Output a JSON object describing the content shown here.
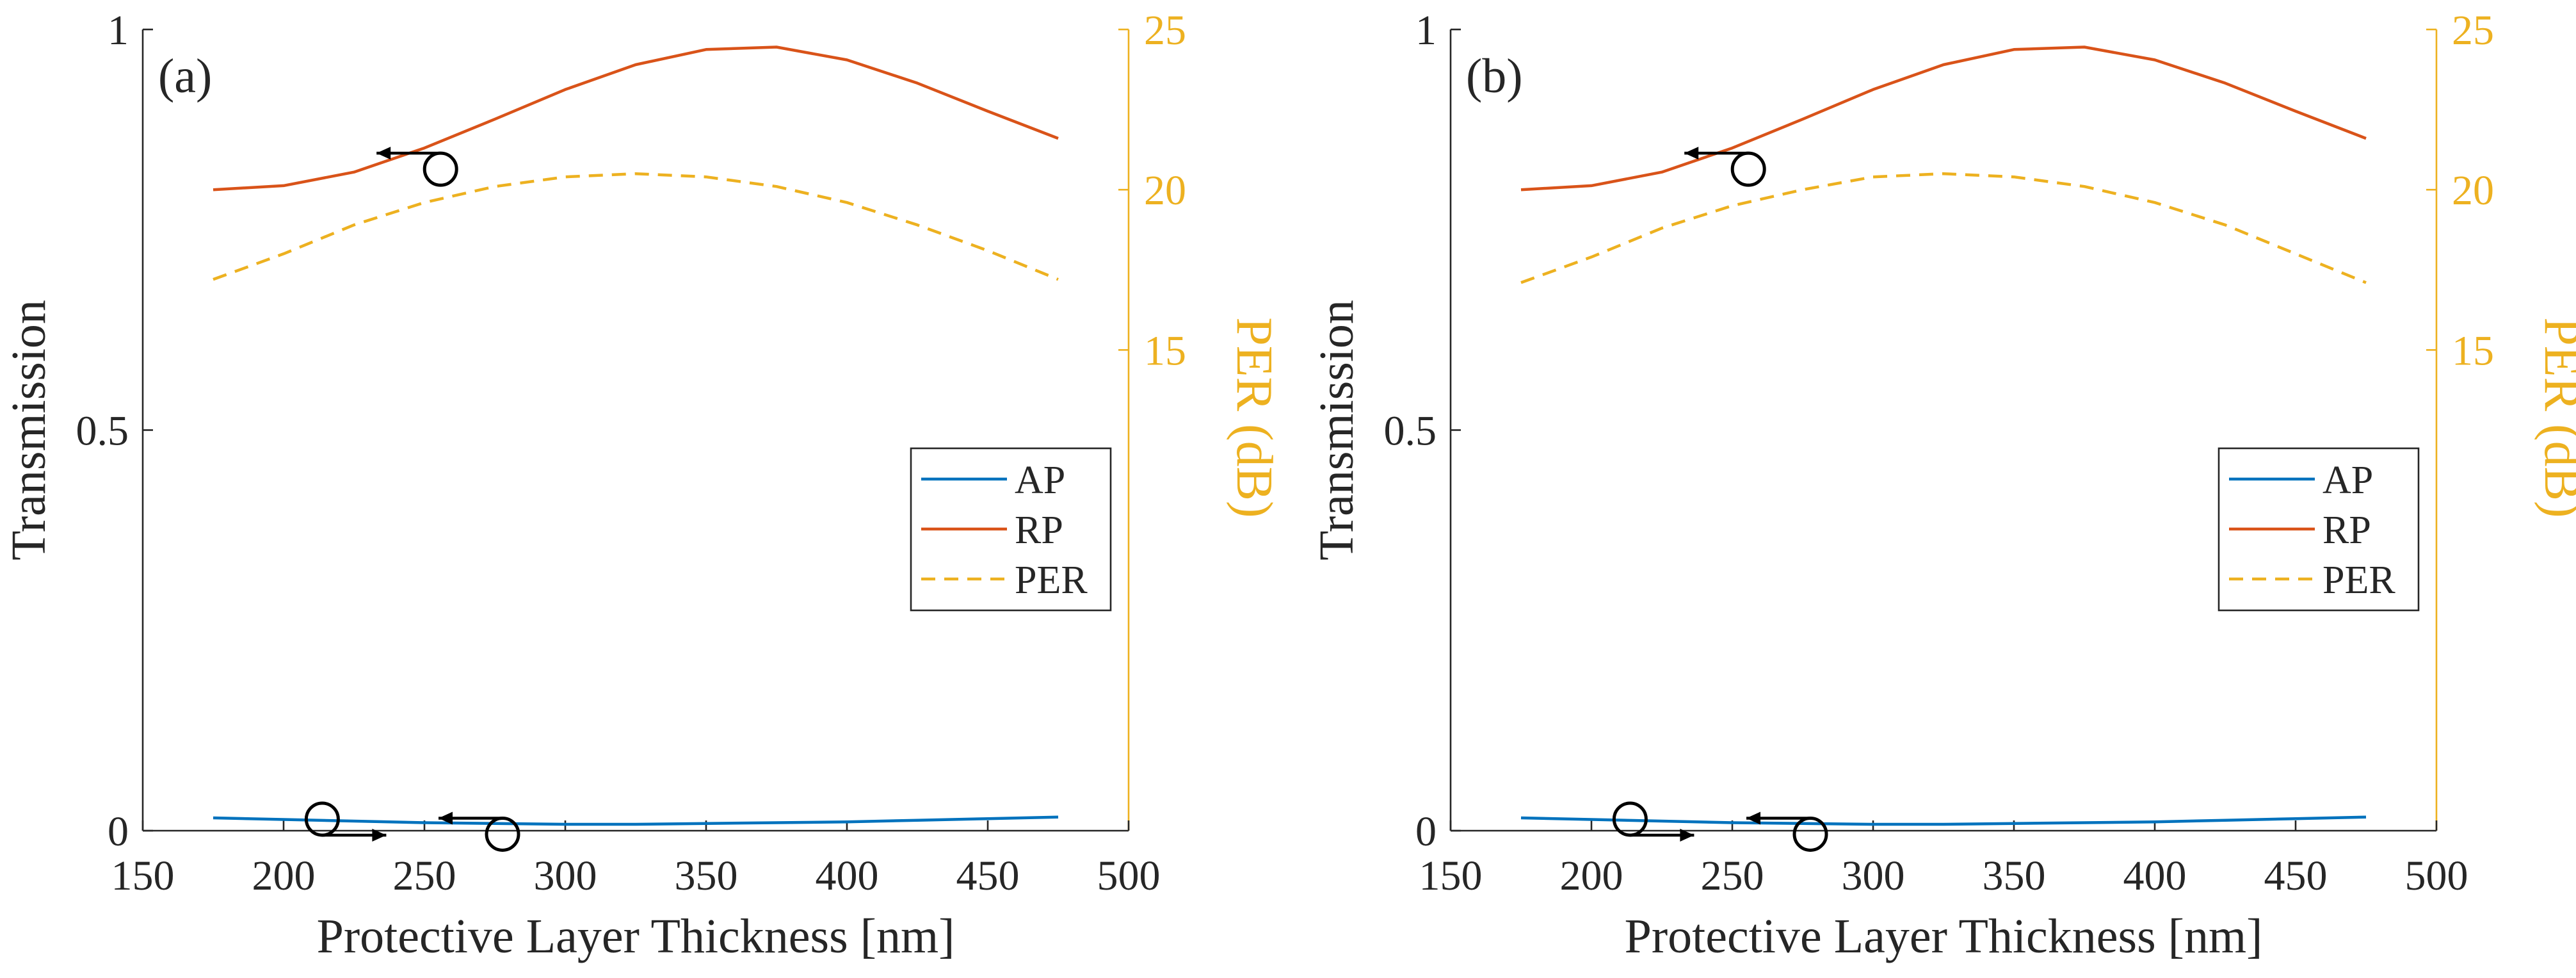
{
  "colors": {
    "ap": "#0072BD",
    "rp": "#D95319",
    "per": "#EDB120",
    "axis": "#262626",
    "annotation": "#000000"
  },
  "chart_data": [
    {
      "type": "line",
      "panel_label": "(a)",
      "xlabel": "Protective Layer Thickness [nm]",
      "ylabel": "Transmission",
      "ylabel_right": "PER (dB)",
      "xlim": [
        150,
        500
      ],
      "ylim": [
        0,
        1
      ],
      "ylim_right": [
        0,
        25
      ],
      "x_ticks": [
        150,
        200,
        250,
        300,
        350,
        400,
        450,
        500
      ],
      "y_ticks": [
        0,
        0.5,
        1
      ],
      "y_tick_labels": [
        "0",
        "0.5",
        "1"
      ],
      "y_right_ticks": [
        15,
        20,
        25
      ],
      "grid": false,
      "legend_position": "right-middle",
      "legend": [
        "AP",
        "RP",
        "PER"
      ],
      "x": [
        175,
        200,
        225,
        250,
        275,
        300,
        325,
        350,
        375,
        400,
        425,
        450,
        475
      ],
      "series": [
        {
          "name": "AP",
          "axis": "left",
          "style": "solid",
          "values": [
            0.016,
            0.014,
            0.012,
            0.01,
            0.009,
            0.008,
            0.008,
            0.009,
            0.01,
            0.011,
            0.013,
            0.015,
            0.017
          ]
        },
        {
          "name": "RP",
          "axis": "left",
          "style": "solid",
          "values": [
            0.8,
            0.805,
            0.822,
            0.852,
            0.888,
            0.925,
            0.956,
            0.975,
            0.978,
            0.962,
            0.933,
            0.898,
            0.864
          ]
        },
        {
          "name": "PER",
          "axis": "right",
          "style": "dashed",
          "values": [
            17.2,
            18.0,
            18.9,
            19.6,
            20.1,
            20.4,
            20.5,
            20.4,
            20.1,
            19.6,
            18.9,
            18.1,
            17.2
          ]
        }
      ],
      "annotations": [
        {
          "target": "RP",
          "x": 253,
          "y": 0.84,
          "arrow": "left"
        },
        {
          "target": "PER",
          "x": 211,
          "y": 0.72,
          "arrow": "right"
        },
        {
          "target": "AP",
          "x": 275,
          "y": 0.01,
          "arrow": "left"
        }
      ]
    },
    {
      "type": "line",
      "panel_label": "(b)",
      "xlabel": "Protective Layer Thickness [nm]",
      "ylabel": "Transmission",
      "ylabel_right": "PER (dB)",
      "xlim": [
        150,
        500
      ],
      "ylim": [
        0,
        1
      ],
      "ylim_right": [
        0,
        25
      ],
      "x_ticks": [
        150,
        200,
        250,
        300,
        350,
        400,
        450,
        500
      ],
      "y_ticks": [
        0,
        0.5,
        1
      ],
      "y_tick_labels": [
        "0",
        "0.5",
        "1"
      ],
      "y_right_ticks": [
        15,
        20,
        25
      ],
      "grid": false,
      "legend_position": "right-middle",
      "legend": [
        "AP",
        "RP",
        "PER"
      ],
      "x": [
        175,
        200,
        225,
        250,
        275,
        300,
        325,
        350,
        375,
        400,
        425,
        450,
        475
      ],
      "series": [
        {
          "name": "AP",
          "axis": "left",
          "style": "solid",
          "values": [
            0.016,
            0.014,
            0.012,
            0.01,
            0.009,
            0.008,
            0.008,
            0.009,
            0.01,
            0.011,
            0.013,
            0.015,
            0.017
          ]
        },
        {
          "name": "RP",
          "axis": "left",
          "style": "solid",
          "values": [
            0.8,
            0.805,
            0.822,
            0.852,
            0.888,
            0.925,
            0.956,
            0.975,
            0.978,
            0.962,
            0.933,
            0.898,
            0.864
          ]
        },
        {
          "name": "PER",
          "axis": "right",
          "style": "dashed",
          "values": [
            17.1,
            17.9,
            18.8,
            19.5,
            20.0,
            20.4,
            20.5,
            20.4,
            20.1,
            19.6,
            18.9,
            18.0,
            17.1
          ]
        }
      ],
      "annotations": [
        {
          "target": "RP",
          "x": 253,
          "y": 0.84,
          "arrow": "left"
        },
        {
          "target": "PER",
          "x": 211,
          "y": 0.72,
          "arrow": "right"
        },
        {
          "target": "AP",
          "x": 275,
          "y": 0.01,
          "arrow": "left"
        }
      ]
    }
  ]
}
